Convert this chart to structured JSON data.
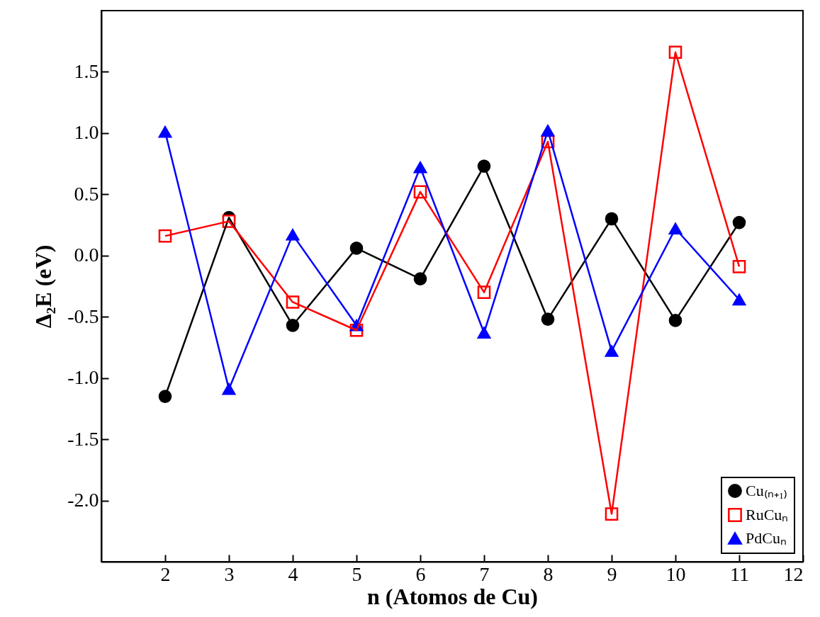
{
  "chart_data": {
    "type": "line",
    "xlabel": "n (Atomos de Cu)",
    "ylabel": "Δ₂E (eV)",
    "x": [
      2,
      3,
      4,
      5,
      6,
      7,
      8,
      9,
      10,
      11
    ],
    "series": [
      {
        "name": "Cu₍ₙ₊₁₎",
        "color": "#000000",
        "marker": "circle",
        "values": [
          -1.15,
          0.31,
          -0.57,
          0.06,
          -0.19,
          0.73,
          -0.52,
          0.3,
          -0.53,
          0.27
        ]
      },
      {
        "name": "RuCuₙ",
        "color": "#ff0000",
        "marker": "square",
        "values": [
          0.16,
          0.28,
          -0.38,
          -0.61,
          0.52,
          -0.3,
          0.93,
          -2.11,
          1.66,
          -0.09
        ]
      },
      {
        "name": "PdCuₙ",
        "color": "#0000ff",
        "marker": "triangle",
        "values": [
          1.01,
          -1.09,
          0.17,
          -0.57,
          0.72,
          -0.63,
          1.02,
          -0.78,
          0.22,
          -0.36
        ]
      }
    ],
    "xlim": [
      1,
      12
    ],
    "xticks": [
      2,
      3,
      4,
      5,
      6,
      7,
      8,
      9,
      10,
      11,
      12
    ],
    "ylim": [
      -2.5,
      2.0
    ],
    "yticks": [
      {
        "value": -2,
        "label": "-2.0"
      },
      -1.5,
      {
        "value": -1,
        "label": "-1.0"
      },
      -0.5,
      {
        "value": 0,
        "label": "0.0"
      },
      0.5,
      {
        "value": 1,
        "label": "1.0"
      },
      1.5
    ],
    "grid": false,
    "legend": "bottom right",
    "line_style": "solid"
  }
}
